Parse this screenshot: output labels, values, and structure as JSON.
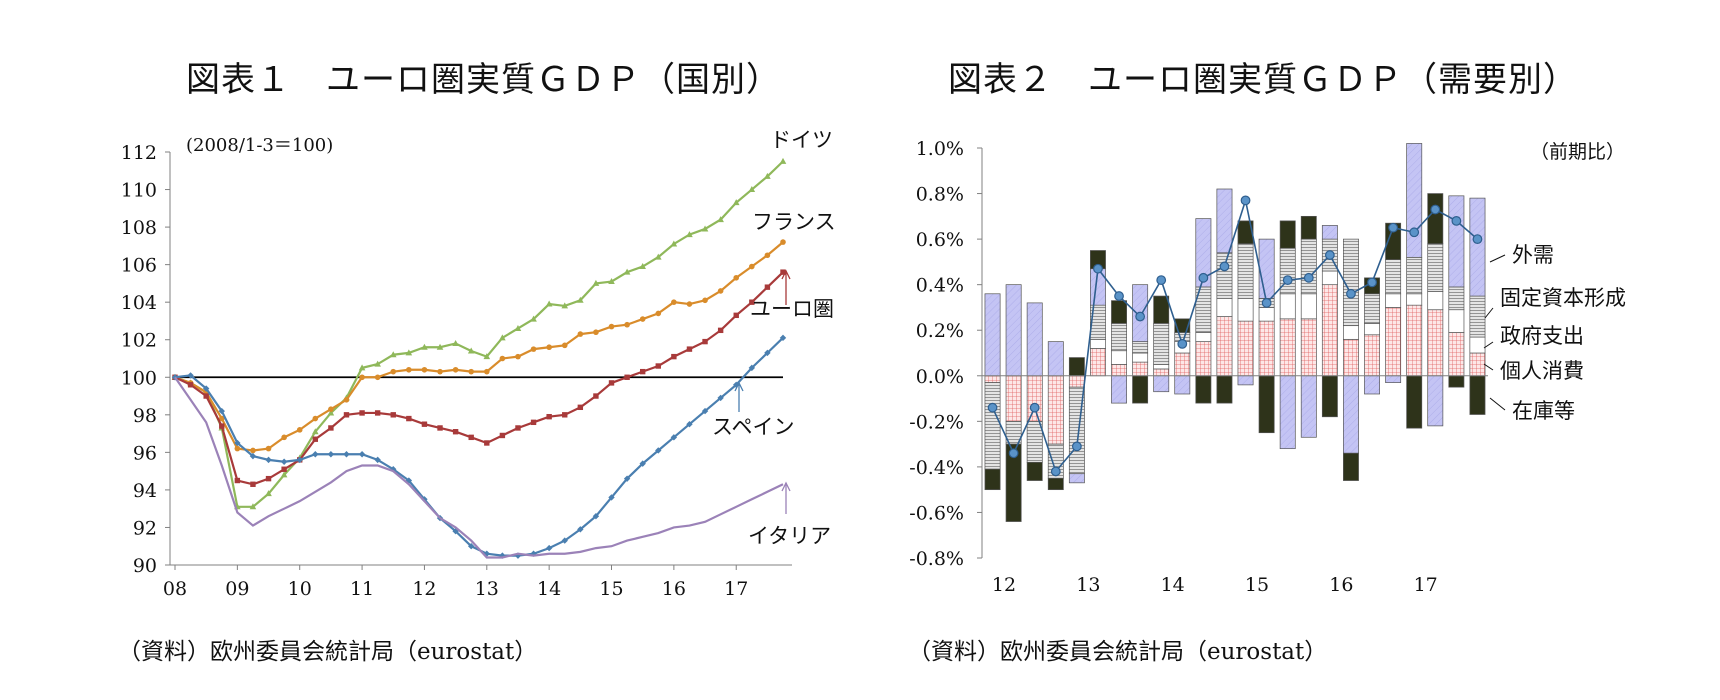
{
  "chart_data": [
    {
      "type": "line",
      "title": "図表１　ユーロ圏実質ＧＤＰ（国別）",
      "note": "(2008/1-3＝100)",
      "source": "（資料）欧州委員会統計局（eurostat）",
      "x_labels": [
        "08",
        "09",
        "10",
        "11",
        "12",
        "13",
        "14",
        "15",
        "16",
        "17"
      ],
      "x_start": 2008.0,
      "x_step": 0.25,
      "ylim": [
        90,
        112
      ],
      "y_ticks": [
        90,
        92,
        94,
        96,
        98,
        100,
        102,
        104,
        106,
        108,
        110,
        112
      ],
      "baseline": 100,
      "series": [
        {
          "name": "ドイツ",
          "color": "#8fb85a",
          "marker": "triangle",
          "values": [
            100,
            99.7,
            99.2,
            97.3,
            93.1,
            93.1,
            93.8,
            94.8,
            95.7,
            97.1,
            98.1,
            98.9,
            100.5,
            100.7,
            101.2,
            101.3,
            101.6,
            101.6,
            101.8,
            101.4,
            101.1,
            102.1,
            102.6,
            103.1,
            103.9,
            103.8,
            104.1,
            105.0,
            105.1,
            105.6,
            105.9,
            106.4,
            107.1,
            107.6,
            107.9,
            108.4,
            109.3,
            110.0,
            110.7,
            111.5
          ]
        },
        {
          "name": "フランス",
          "color": "#d98c2b",
          "marker": "circle",
          "values": [
            100,
            99.7,
            99.2,
            97.8,
            96.2,
            96.1,
            96.2,
            96.8,
            97.2,
            97.8,
            98.3,
            98.8,
            100.0,
            100.0,
            100.3,
            100.4,
            100.4,
            100.3,
            100.4,
            100.3,
            100.3,
            101.0,
            101.1,
            101.5,
            101.6,
            101.7,
            102.3,
            102.4,
            102.7,
            102.8,
            103.1,
            103.4,
            104.0,
            103.9,
            104.1,
            104.6,
            105.3,
            105.9,
            106.5,
            107.2
          ]
        },
        {
          "name": "ユーロ圏",
          "color": "#a83a3a",
          "marker": "square",
          "values": [
            100,
            99.6,
            99.0,
            97.4,
            94.5,
            94.3,
            94.6,
            95.1,
            95.6,
            96.7,
            97.3,
            98.0,
            98.1,
            98.1,
            98.0,
            97.8,
            97.5,
            97.3,
            97.1,
            96.8,
            96.5,
            96.9,
            97.3,
            97.6,
            97.9,
            98.0,
            98.4,
            99.0,
            99.7,
            100.0,
            100.3,
            100.6,
            101.1,
            101.5,
            101.9,
            102.5,
            103.3,
            104.0,
            104.8,
            105.6
          ]
        },
        {
          "name": "スペイン",
          "color": "#4a7fb0",
          "marker": "diamond",
          "values": [
            100,
            100.1,
            99.4,
            98.2,
            96.5,
            95.8,
            95.6,
            95.5,
            95.6,
            95.9,
            95.9,
            95.9,
            95.9,
            95.6,
            95.1,
            94.5,
            93.5,
            92.5,
            91.8,
            91.0,
            90.6,
            90.5,
            90.5,
            90.6,
            90.9,
            91.3,
            91.9,
            92.6,
            93.6,
            94.6,
            95.4,
            96.1,
            96.8,
            97.5,
            98.2,
            98.9,
            99.6,
            100.5,
            101.3,
            102.1
          ]
        },
        {
          "name": "イタリア",
          "color": "#9b82b8",
          "marker": "none",
          "values": [
            100,
            98.8,
            97.6,
            95.3,
            92.8,
            92.1,
            92.6,
            93.0,
            93.4,
            93.9,
            94.4,
            95.0,
            95.3,
            95.3,
            95.0,
            94.3,
            93.4,
            92.5,
            92.0,
            91.3,
            90.4,
            90.4,
            90.6,
            90.5,
            90.6,
            90.6,
            90.7,
            90.9,
            91.0,
            91.3,
            91.5,
            91.7,
            92.0,
            92.1,
            92.3,
            92.7,
            93.1,
            93.5,
            93.9,
            94.3
          ]
        }
      ],
      "annotations": [
        "ドイツ",
        "フランス",
        "ユーロ圏",
        "スペイン",
        "イタリア"
      ]
    },
    {
      "type": "bar",
      "stacked": true,
      "title": "図表２　ユーロ圏実質ＧＤＰ（需要別）",
      "note": "（前期比）",
      "source": "（資料）欧州委員会統計局（eurostat）",
      "x_labels": [
        "12",
        "13",
        "14",
        "15",
        "16",
        "17"
      ],
      "ylim": [
        -0.8,
        1.0
      ],
      "y_ticks": [
        "1.0%",
        "0.8%",
        "0.6%",
        "0.4%",
        "0.2%",
        "0.0%",
        "-0.2%",
        "-0.4%",
        "-0.6%",
        "-0.8%"
      ],
      "y_tick_values": [
        1.0,
        0.8,
        0.6,
        0.4,
        0.2,
        0.0,
        -0.2,
        -0.4,
        -0.6,
        -0.8
      ],
      "series": [
        {
          "name": "個人消費",
          "color": "#f7c9c9",
          "pattern": "grid-red",
          "values": [
            -0.03,
            -0.2,
            -0.2,
            -0.3,
            -0.05,
            0.12,
            0.05,
            0.06,
            0.03,
            0.1,
            0.15,
            0.26,
            0.24,
            0.24,
            0.25,
            0.25,
            0.4,
            0.16,
            0.18,
            0.3,
            0.31,
            0.29,
            0.19,
            0.1
          ]
        },
        {
          "name": "政府支出",
          "color": "#ffffff",
          "pattern": "white",
          "values": [
            0,
            0,
            0,
            0,
            0,
            0.04,
            0.06,
            0.04,
            0.02,
            0.05,
            0.04,
            0.08,
            0.1,
            0.06,
            0.11,
            0.11,
            0.06,
            0.06,
            0.05,
            0.06,
            0.05,
            0.08,
            0.1,
            0.07
          ]
        },
        {
          "name": "固定資本形成",
          "color": "#d0d0d0",
          "pattern": "hatch-gray",
          "values": [
            -0.38,
            -0.1,
            -0.18,
            -0.15,
            -0.38,
            0.15,
            0.12,
            0.05,
            0.18,
            0.04,
            0.2,
            0.2,
            0.24,
            0.04,
            0.2,
            0.24,
            0.14,
            0.38,
            0.13,
            0.15,
            0.16,
            0.21,
            0.1,
            0.18
          ]
        },
        {
          "name": "外需",
          "color": "#b8b8f0",
          "pattern": "hatch-blue",
          "values": [
            0.36,
            0.4,
            0.32,
            0.15,
            -0.04,
            0.16,
            -0.12,
            0.25,
            -0.07,
            -0.08,
            0.3,
            0.28,
            -0.04,
            0.26,
            -0.32,
            -0.27,
            0.06,
            -0.34,
            -0.08,
            -0.03,
            0.5,
            -0.22,
            0.4,
            0.43
          ]
        },
        {
          "name": "在庫等",
          "color": "#2e331a",
          "pattern": "solid-dark",
          "values": [
            -0.09,
            -0.34,
            -0.08,
            -0.05,
            0.08,
            0.08,
            0.1,
            -0.12,
            0.12,
            0.06,
            -0.12,
            -0.12,
            0.1,
            -0.25,
            0.12,
            0.1,
            -0.18,
            -0.12,
            0.07,
            0.16,
            -0.23,
            0.22,
            -0.05,
            -0.17
          ]
        }
      ],
      "total": {
        "name": "GDP",
        "color": "#4a7fb0",
        "values": [
          -0.14,
          -0.34,
          -0.14,
          -0.42,
          -0.31,
          0.47,
          0.35,
          0.26,
          0.42,
          0.14,
          0.43,
          0.48,
          0.77,
          0.32,
          0.42,
          0.43,
          0.53,
          0.36,
          0.41,
          0.65,
          0.63,
          0.73,
          0.68,
          0.6
        ]
      },
      "legend": [
        "外需",
        "固定資本形成",
        "政府支出",
        "個人消費",
        "在庫等"
      ]
    }
  ]
}
